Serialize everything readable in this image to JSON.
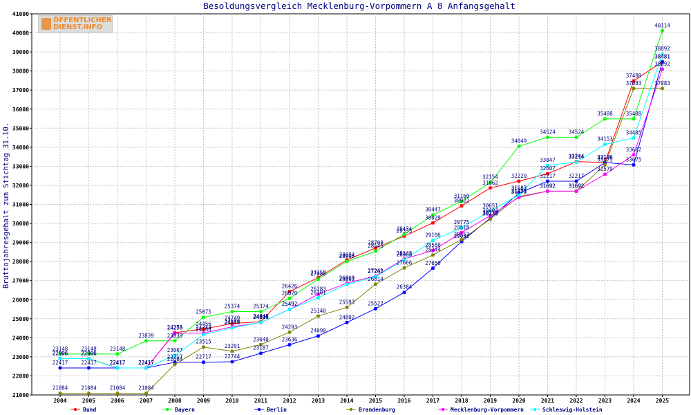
{
  "logo": {
    "line1": "ÖFFENTLICHER",
    "line2": "DIENST.INFO"
  },
  "chart_data": {
    "type": "line",
    "title": "Besoldungsvergleich Mecklenburg-Vorpommern A 8 Anfangsgehalt",
    "xlabel": "",
    "ylabel": "Bruttojahresgehalt zum Stichtag 31.10.",
    "ylim": [
      21000,
      41000
    ],
    "yticks": [
      "21000",
      "22000",
      "23000",
      "24000",
      "25000",
      "26000",
      "27000",
      "28000",
      "29000",
      "30000",
      "31000",
      "32000",
      "33000",
      "34000",
      "35000",
      "36000",
      "37000",
      "38000",
      "39000",
      "40000",
      "41000"
    ],
    "categories": [
      "2004",
      "2005",
      "2006",
      "2007",
      "2008",
      "2009",
      "2010",
      "2011",
      "2012",
      "2013",
      "2014",
      "2015",
      "2016",
      "2017",
      "2018",
      "2019",
      "2020",
      "2021",
      "2022",
      "2023",
      "2024",
      "2025"
    ],
    "series": [
      {
        "name": "Bund",
        "color": "#ff0000",
        "values": [
          22906,
          22906,
          22417,
          22417,
          24273,
          24456,
          24749,
          24848,
          26426,
          27158,
          28084,
          28708,
          29333,
          30029,
          30922,
          31862,
          32220,
          32607,
          33244,
          33196,
          37480,
          38481
        ]
      },
      {
        "name": "Bayern",
        "color": "#00ff00",
        "values": [
          23148,
          23148,
          23148,
          23839,
          23839,
          25075,
          25374,
          25374,
          26070,
          27080,
          28006,
          28545,
          29434,
          30447,
          31160,
          32154,
          34049,
          34524,
          34524,
          35488,
          35488,
          40114
        ]
      },
      {
        "name": "Berlin",
        "color": "#0000ff",
        "values": [
          22417,
          22417,
          22417,
          22417,
          22717,
          22717,
          22744,
          23187,
          23636,
          24098,
          24802,
          25527,
          26384,
          27650,
          29052,
          30279,
          31587,
          32217,
          32217,
          33196,
          33075,
          38481
        ]
      },
      {
        "name": "Brandenburg",
        "color": "#808000",
        "values": [
          21084,
          21084,
          21084,
          21084,
          22604,
          23515,
          23291,
          23640,
          24293,
          25140,
          25593,
          26814,
          27666,
          28344,
          29152,
          30230,
          31423,
          31692,
          31692,
          33075,
          37083,
          37083
        ]
      },
      {
        "name": "Mecklenburg-Vorpommern",
        "color": "#ff00ff",
        "values": [
          22906,
          22906,
          22417,
          22417,
          24250,
          24244,
          24580,
          24804,
          25492,
          26283,
          26869,
          27241,
          28143,
          28580,
          29518,
          30404,
          31373,
          31692,
          31692,
          32579,
          33602,
          38092
        ]
      },
      {
        "name": "Schleswig-Holstein",
        "color": "#00ffff",
        "values": [
          22906,
          22906,
          22417,
          22417,
          23067,
          24166,
          24518,
          24811,
          25492,
          26101,
          26801,
          27207,
          28088,
          29106,
          29775,
          30651,
          31502,
          33047,
          33214,
          34153,
          34485,
          38892
        ]
      }
    ]
  }
}
